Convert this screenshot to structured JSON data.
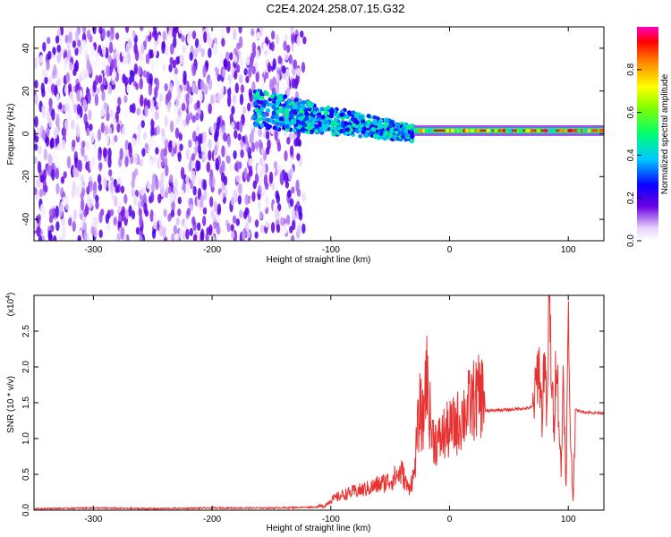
{
  "title": "C2E4.2024.258.07.15.G32",
  "chart_data": [
    {
      "type": "heatmap",
      "xlabel": "Height of straight line (km)",
      "ylabel": "Frequency (Hz)",
      "xlim": [
        -350,
        130
      ],
      "ylim": [
        -50,
        50
      ],
      "xticks": [
        -300,
        -200,
        -100,
        0,
        100
      ],
      "yticks": [
        -40,
        -20,
        0,
        20,
        40
      ],
      "colorbar": {
        "label": "Normalized spectral amplitude",
        "ticks": [
          0.0,
          0.2,
          0.4,
          0.6,
          0.8
        ],
        "range": [
          0,
          1
        ]
      },
      "features": [
        {
          "kind": "broadband_noise",
          "x_range": [
            -350,
            -130
          ],
          "frequency_range": [
            -50,
            50
          ],
          "amplitude": [
            0.0,
            0.2
          ]
        },
        {
          "kind": "descending_trace",
          "x_range": [
            -165,
            -30
          ],
          "frequency_start": 12,
          "frequency_end": 0,
          "amplitude": [
            0.2,
            0.5
          ]
        },
        {
          "kind": "steady_line",
          "x_range": [
            -30,
            130
          ],
          "frequency": 1.5,
          "amplitude": [
            0.4,
            1.0
          ]
        }
      ]
    },
    {
      "type": "line",
      "xlabel": "Height of straight line (km)",
      "ylabel": "SNR (10 * v/v)",
      "scale_label": "(x10",
      "scale_exponent": "4",
      "xlim": [
        -350,
        130
      ],
      "ylim": [
        0,
        3.0
      ],
      "xticks": [
        -300,
        -200,
        -100,
        0,
        100
      ],
      "yticks": [
        0.0,
        0.5,
        1.0,
        1.5,
        2.0,
        2.5
      ],
      "series": [
        {
          "color": "#e83232",
          "x": [
            -350,
            -300,
            -250,
            -200,
            -150,
            -120,
            -105,
            -100,
            -90,
            -80,
            -70,
            -60,
            -50,
            -45,
            -40,
            -35,
            -30,
            -27,
            -25,
            -22,
            -20,
            -17,
            -15,
            -10,
            -5,
            0,
            5,
            10,
            20,
            30,
            40,
            50,
            60,
            65,
            70,
            72,
            75,
            78,
            80,
            82,
            84,
            86,
            88,
            90,
            92,
            94,
            96,
            98,
            100,
            102,
            104,
            106,
            110,
            120,
            130
          ],
          "y": [
            0.02,
            0.03,
            0.02,
            0.03,
            0.03,
            0.04,
            0.05,
            0.12,
            0.18,
            0.22,
            0.25,
            0.3,
            0.35,
            0.4,
            0.45,
            0.25,
            0.4,
            0.9,
            1.2,
            1.0,
            1.7,
            1.2,
            0.9,
            0.8,
            0.9,
            0.95,
            1.0,
            1.1,
            1.3,
            1.38,
            1.4,
            1.4,
            1.42,
            1.42,
            1.44,
            1.6,
            2.1,
            1.3,
            2.3,
            1.2,
            2.95,
            1.8,
            1.1,
            2.4,
            1.3,
            0.5,
            2.1,
            0.15,
            2.6,
            1.0,
            0.1,
            1.4,
            1.38,
            1.36,
            1.36
          ]
        }
      ]
    }
  ]
}
